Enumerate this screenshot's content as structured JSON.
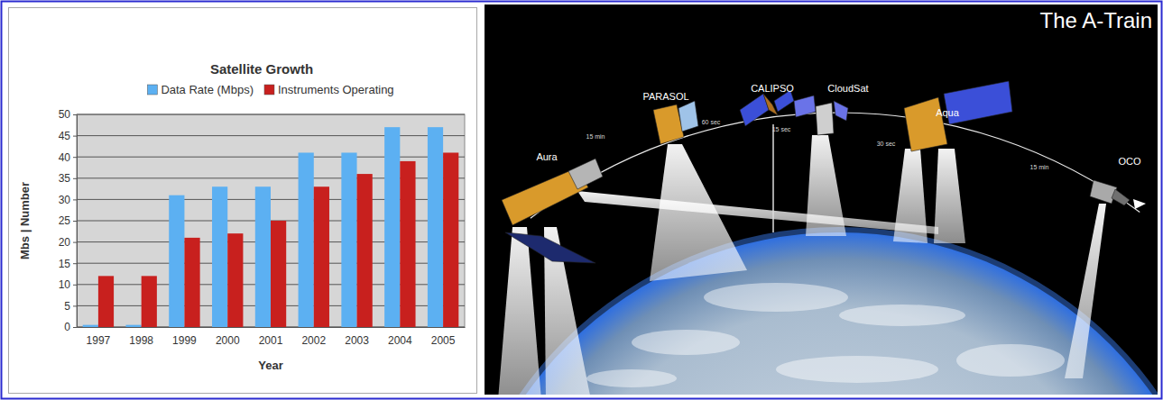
{
  "chart_data": {
    "type": "bar",
    "title": "Satellite Growth",
    "x_label": "Year",
    "y_label": "Mbs | Number",
    "categories": [
      "1997",
      "1998",
      "1999",
      "2000",
      "2001",
      "2002",
      "2003",
      "2004",
      "2005"
    ],
    "series": [
      {
        "name": "Data Rate (Mbps)",
        "color": "#5cb0f2",
        "values": [
          0.5,
          0.5,
          31,
          33,
          33,
          41,
          41,
          47,
          47
        ]
      },
      {
        "name": "Instruments Operating",
        "color": "#c8201e",
        "values": [
          12,
          12,
          21,
          22,
          25,
          33,
          36,
          39,
          41
        ]
      }
    ],
    "ylim": [
      0,
      50
    ],
    "yticks": [
      0,
      5,
      10,
      15,
      20,
      25,
      30,
      35,
      40,
      45,
      50
    ],
    "grid": true,
    "legend": "top"
  },
  "diagram": {
    "title": "The A-Train",
    "satellites": [
      "Aura",
      "PARASOL",
      "CALIPSO",
      "CloudSat",
      "Aqua",
      "OCO"
    ],
    "intervals": [
      "15 min",
      "60 sec",
      "15 sec",
      "30 sec",
      "15 min"
    ]
  }
}
